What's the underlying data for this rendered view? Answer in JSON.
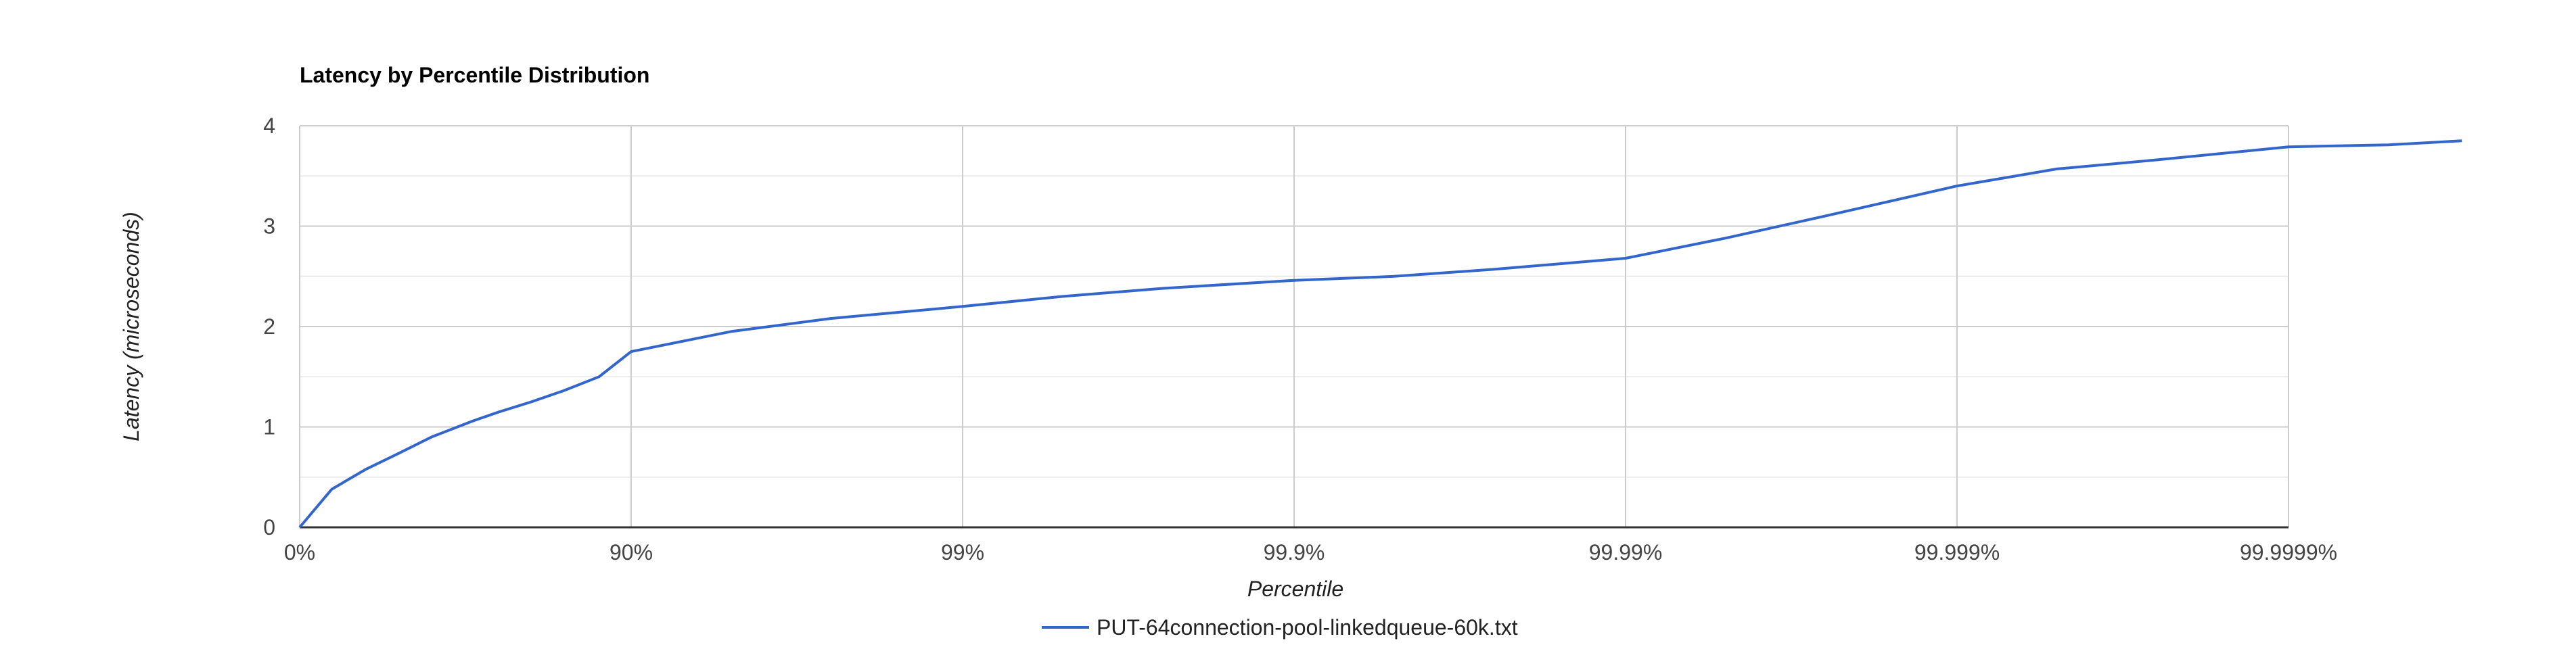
{
  "chart_data": {
    "type": "line",
    "title": "Latency by Percentile Distribution",
    "xlabel": "Percentile",
    "ylabel": "Latency (microseconds)",
    "x_scale": "log-percentile",
    "x_ticks": [
      "0%",
      "90%",
      "99%",
      "99.9%",
      "99.99%",
      "99.999%",
      "99.9999%"
    ],
    "y_ticks": [
      "0",
      "1",
      "2",
      "3",
      "4"
    ],
    "ylim": [
      0,
      4
    ],
    "grid": true,
    "legend_position": "bottom",
    "series": [
      {
        "name": "PUT-64connection-pool-linkedqueue-60k.txt",
        "color": "#3366cc",
        "points": [
          {
            "percentile": "0%",
            "latency": 0.0
          },
          {
            "percentile": "20%",
            "latency": 0.38
          },
          {
            "percentile": "37%",
            "latency": 0.58
          },
          {
            "percentile": "50%",
            "latency": 0.74
          },
          {
            "percentile": "60%",
            "latency": 0.9
          },
          {
            "percentile": "70%",
            "latency": 1.06
          },
          {
            "percentile": "75%",
            "latency": 1.15
          },
          {
            "percentile": "80%",
            "latency": 1.25
          },
          {
            "percentile": "84%",
            "latency": 1.36
          },
          {
            "percentile": "87.5%",
            "latency": 1.5
          },
          {
            "percentile": "90%",
            "latency": 1.75
          },
          {
            "percentile": "95%",
            "latency": 1.95
          },
          {
            "percentile": "97.5%",
            "latency": 2.08
          },
          {
            "percentile": "99%",
            "latency": 2.2
          },
          {
            "percentile": "99.5%",
            "latency": 2.3
          },
          {
            "percentile": "99.75%",
            "latency": 2.38
          },
          {
            "percentile": "99.9%",
            "latency": 2.46
          },
          {
            "percentile": "99.95%",
            "latency": 2.5
          },
          {
            "percentile": "99.975%",
            "latency": 2.57
          },
          {
            "percentile": "99.99%",
            "latency": 2.68
          },
          {
            "percentile": "99.995%",
            "latency": 2.88
          },
          {
            "percentile": "99.9975%",
            "latency": 3.1
          },
          {
            "percentile": "99.999%",
            "latency": 3.4
          },
          {
            "percentile": "99.9995%",
            "latency": 3.57
          },
          {
            "percentile": "99.99975%",
            "latency": 3.66
          },
          {
            "percentile": "99.9999%",
            "latency": 3.79
          },
          {
            "percentile": "99.99995%",
            "latency": 3.81
          },
          {
            "percentile": "99.99997%",
            "latency": 3.85
          }
        ]
      }
    ]
  }
}
